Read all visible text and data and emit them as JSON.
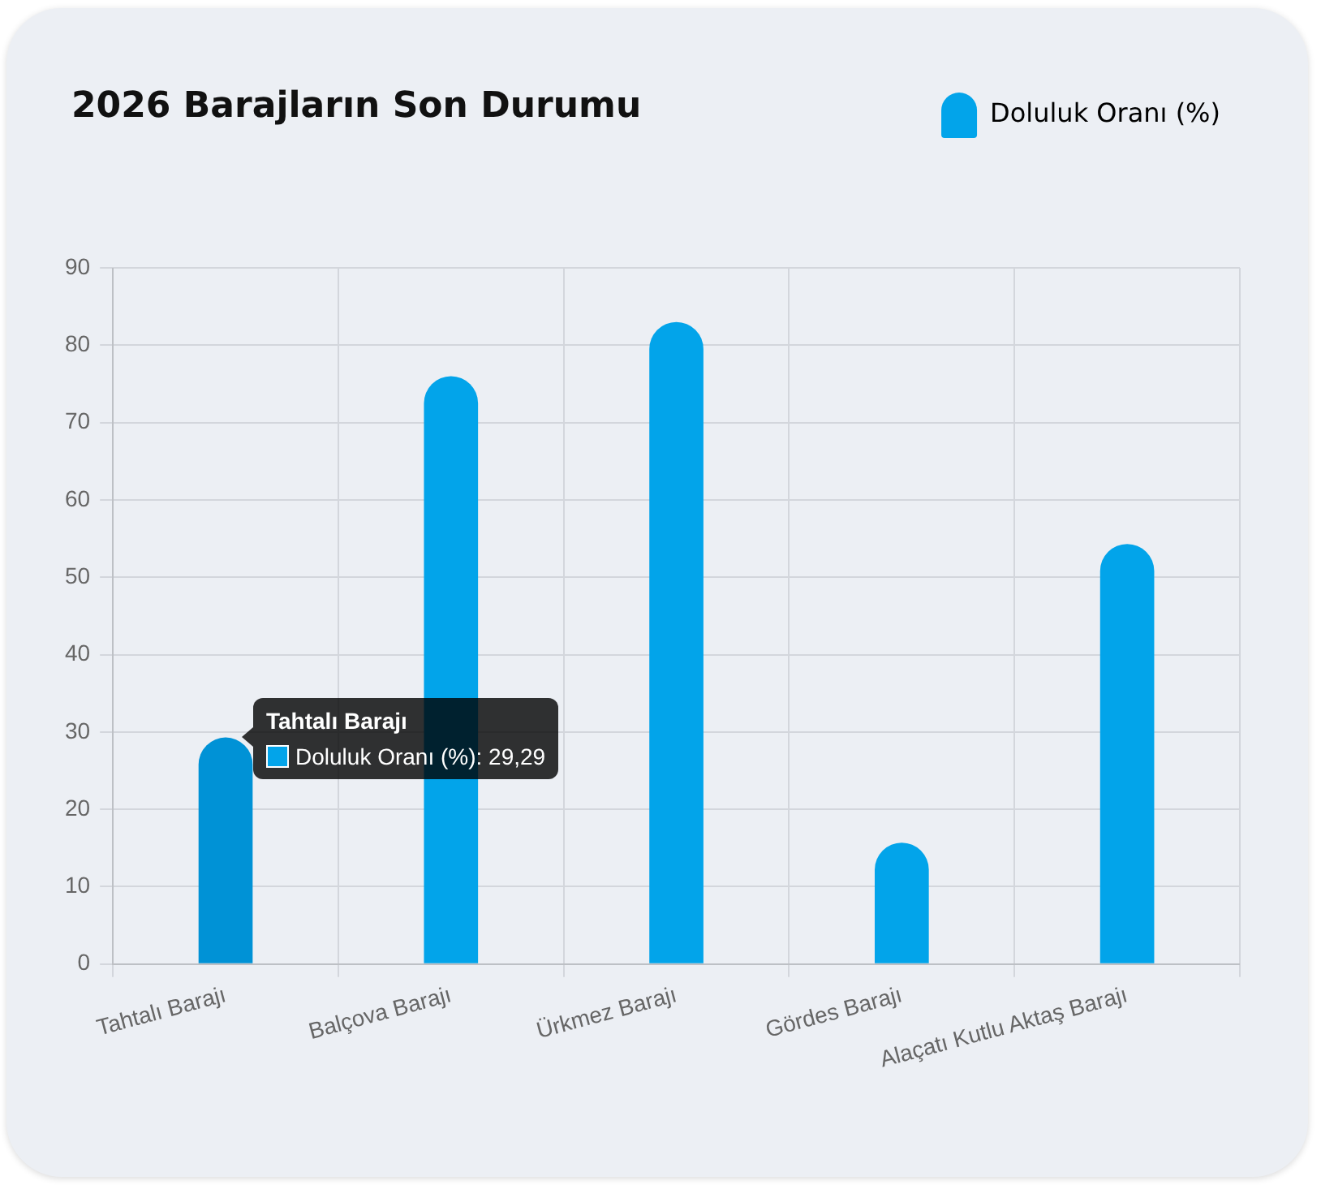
{
  "chart_data": {
    "type": "bar",
    "title": "2026 Barajların Son Durumu",
    "categories": [
      "Tahtalı Barajı",
      "Balçova Barajı",
      "Ürkmez Barajı",
      "Gördes Barajı",
      "Alaçatı Kutlu Aktaş Barajı"
    ],
    "series": [
      {
        "name": "Doluluk Oranı (%)",
        "color": "#02a4ea",
        "colors": [
          "#0092d6",
          "#02a4ea",
          "#02a4ea",
          "#02a4ea",
          "#02a4ea"
        ],
        "values": [
          29.29,
          76,
          83,
          15.7,
          54.3
        ]
      }
    ],
    "ylim": [
      0,
      90
    ],
    "yticks": [
      0,
      10,
      20,
      30,
      40,
      50,
      60,
      70,
      80,
      90
    ],
    "grid": true,
    "legend": "top right",
    "annotations": [
      {
        "text": "Tahtalı Barajı",
        "x": "Tahtalı Barajı",
        "y": 29.29
      },
      "Doluluk Oranı (%): 29,29"
    ]
  }
}
